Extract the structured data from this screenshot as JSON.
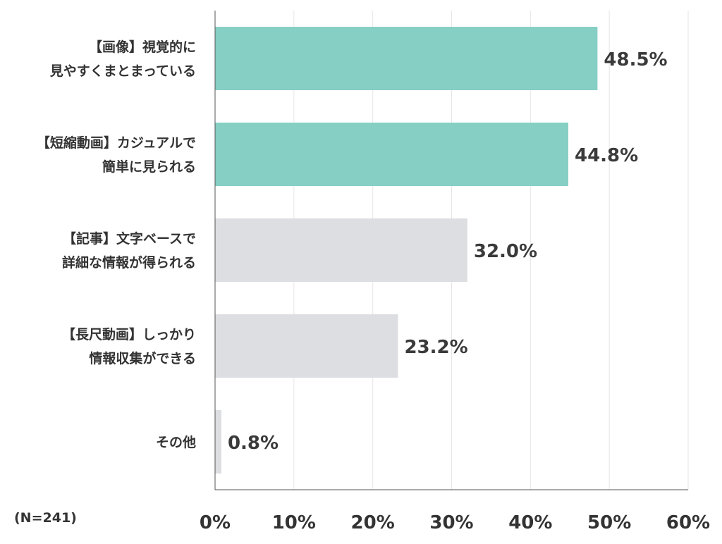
{
  "chart_data": {
    "type": "bar",
    "orientation": "horizontal",
    "categories": [
      [
        "【画像】視覚的に",
        "見やすくまとまっている"
      ],
      [
        "【短縮動画】カジュアルで",
        "簡単に見られる"
      ],
      [
        "【記事】文字ベースで",
        "詳細な情報が得られる"
      ],
      [
        "【長尺動画】しっかり",
        "情報収集ができる"
      ],
      [
        "その他"
      ]
    ],
    "values": [
      48.5,
      44.8,
      32.0,
      23.2,
      0.8
    ],
    "value_labels": [
      "48.5%",
      "44.8%",
      "32.0%",
      "23.2%",
      "0.8%"
    ],
    "bar_colors": [
      "#86cfc4",
      "#86cfc4",
      "#dcdee2",
      "#dcdee2",
      "#dcdee2"
    ],
    "xlim": [
      0,
      60
    ],
    "x_ticks": [
      0,
      10,
      20,
      30,
      40,
      50,
      60
    ],
    "x_tick_labels": [
      "0%",
      "10%",
      "20%",
      "30%",
      "40%",
      "50%",
      "60%"
    ],
    "grid": true,
    "note": "(N=241)"
  }
}
